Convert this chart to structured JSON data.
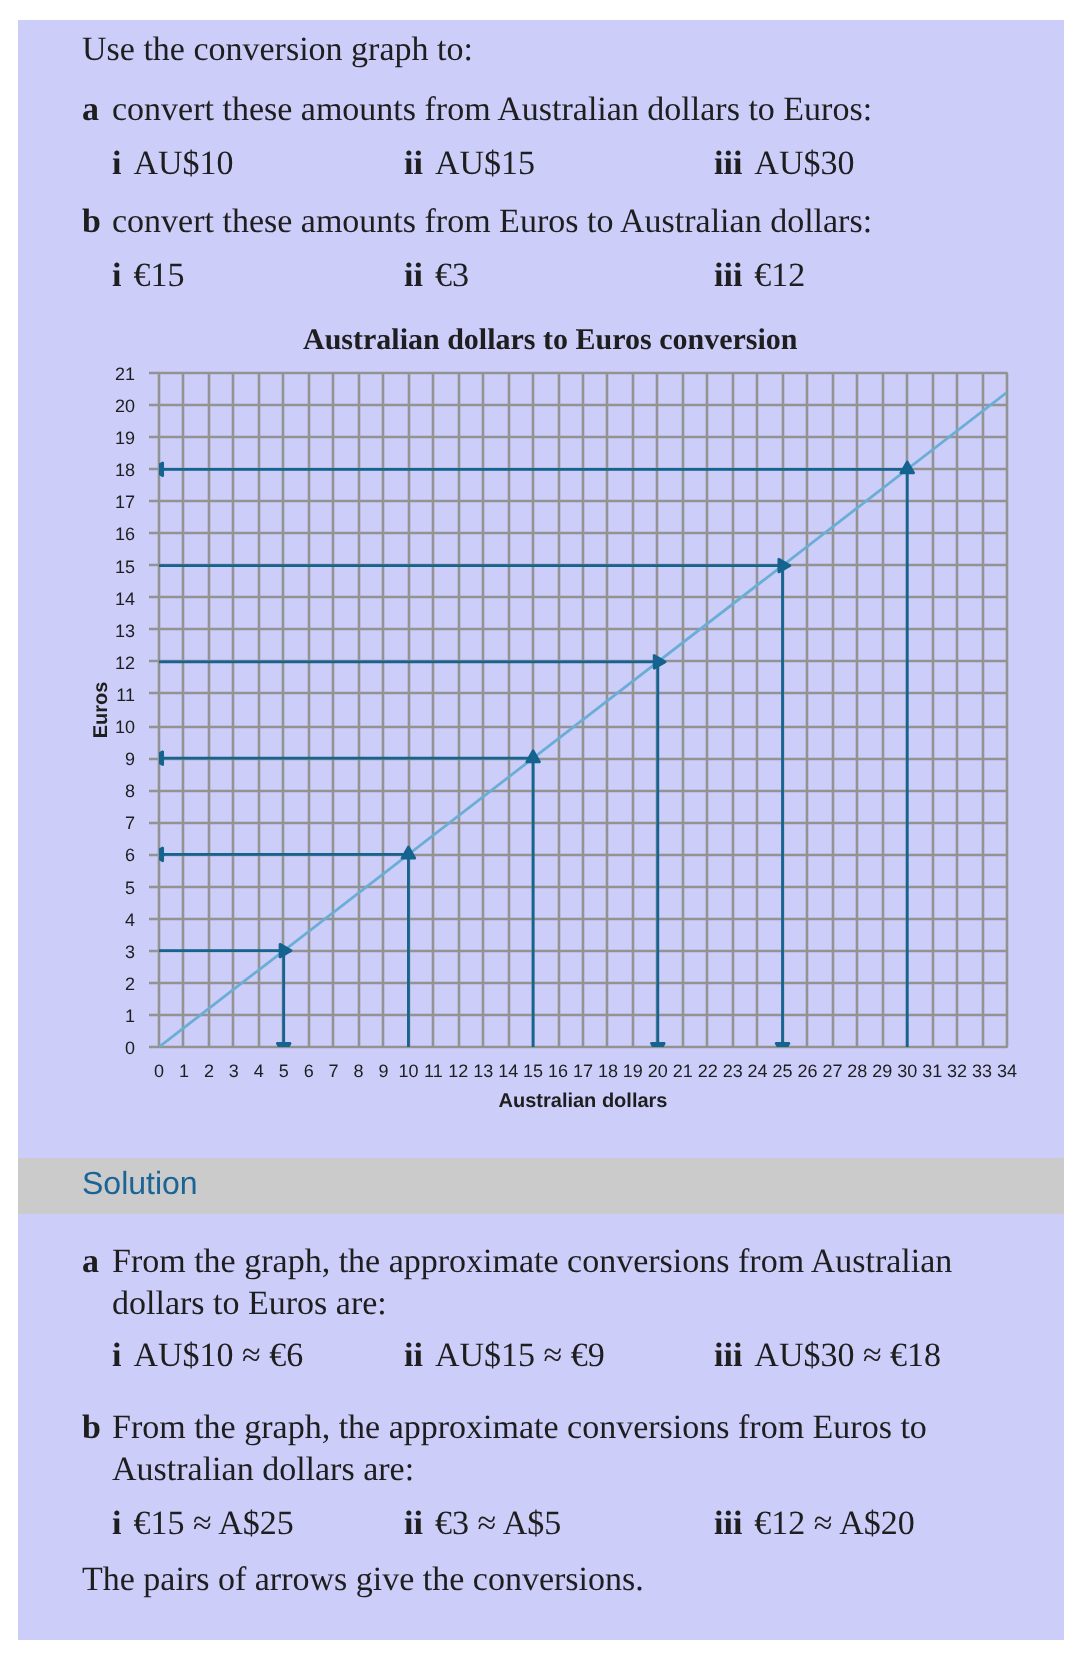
{
  "chart_data": {
    "type": "line",
    "title": "Australian dollars to Euros conversion",
    "xlabel": "Australian dollars",
    "ylabel": "Euros",
    "xlim": [
      0,
      34
    ],
    "ylim": [
      0,
      21
    ],
    "xticks": [
      0,
      1,
      2,
      3,
      4,
      5,
      6,
      7,
      8,
      9,
      10,
      11,
      12,
      13,
      14,
      15,
      16,
      17,
      18,
      19,
      20,
      21,
      22,
      23,
      24,
      25,
      26,
      27,
      28,
      29,
      30,
      31,
      32,
      33,
      34
    ],
    "yticks": [
      0,
      1,
      2,
      3,
      4,
      5,
      6,
      7,
      8,
      9,
      10,
      11,
      12,
      13,
      14,
      15,
      16,
      17,
      18,
      19,
      20,
      21
    ],
    "grid": true,
    "series": [
      {
        "color": "#6aaed6",
        "x": [
          0,
          34
        ],
        "values": [
          0,
          20.4
        ],
        "marker": "none"
      },
      {
        "color": "#15638f",
        "x": [
          10,
          10,
          0
        ],
        "values": [
          0,
          6,
          6
        ],
        "marker": "triangle"
      },
      {
        "color": "#15638f",
        "x": [
          15,
          15,
          0
        ],
        "values": [
          0,
          9,
          9
        ],
        "marker": "triangle"
      },
      {
        "color": "#15638f",
        "x": [
          30,
          30,
          0
        ],
        "values": [
          0,
          18,
          18
        ],
        "marker": "triangle"
      },
      {
        "color": "#15638f",
        "x": [
          0,
          25,
          25
        ],
        "values": [
          15,
          15,
          0
        ],
        "marker": "triangle"
      },
      {
        "color": "#15638f",
        "x": [
          0,
          5,
          5
        ],
        "values": [
          3,
          3,
          0
        ],
        "marker": "triangle"
      },
      {
        "color": "#15638f",
        "x": [
          0,
          20,
          20
        ],
        "values": [
          12,
          12,
          0
        ],
        "marker": "triangle"
      }
    ],
    "annotations": [
      "Use the conversion graph to:",
      "a convert these amounts from Australian dollars to Euros:",
      "i AU$10",
      "ii AU$15",
      "iii AU$30",
      "b convert these amounts from Euros to Australian dollars:",
      "i €15",
      "ii €3",
      "iii €12",
      "Solution",
      "a From the graph, the approximate conversions from Australian dollars to Euros are:",
      "i AU$10 ≈ €6",
      "ii AU$15 ≈ €9",
      "iii AU$30 ≈ €18",
      "b From the graph, the approximate conversions from Euros to Australian dollars are:",
      "i €15 ≈ A$25",
      "ii €3 ≈ A$5",
      "iii €12 ≈ A$20",
      "The pairs of arrows give the conversions."
    ]
  }
}
